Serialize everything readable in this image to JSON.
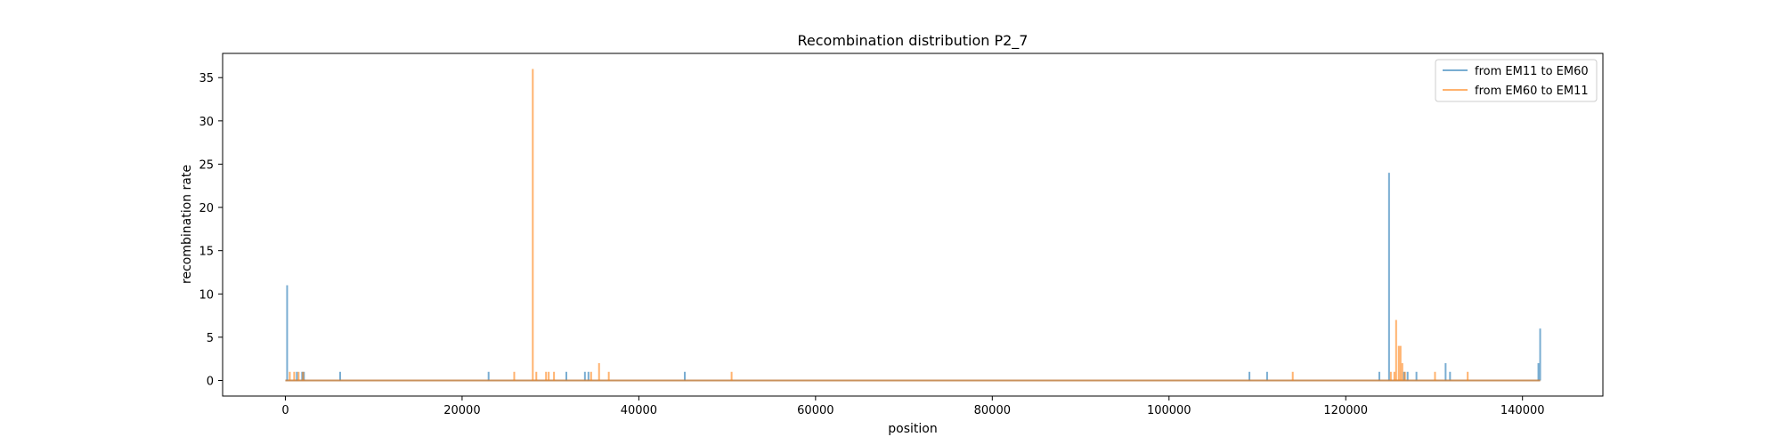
{
  "chart_data": {
    "type": "line",
    "title": "Recombination distribution P2_7",
    "xlabel": "position",
    "ylabel": "recombination rate",
    "xlim": [
      -7100,
      149100
    ],
    "ylim": [
      -1.8,
      37.8
    ],
    "xticks": [
      0,
      20000,
      40000,
      60000,
      80000,
      100000,
      120000,
      140000
    ],
    "yticks": [
      0,
      5,
      10,
      15,
      20,
      25,
      30,
      35
    ],
    "x_range": [
      0,
      142000
    ],
    "grid": false,
    "legend_position": "top-right",
    "series": [
      {
        "name": "from EM11 to EM60",
        "color": "#1f77b4",
        "spikes": [
          {
            "x": 200,
            "y": 11
          },
          {
            "x": 1300,
            "y": 1
          },
          {
            "x": 1900,
            "y": 1
          },
          {
            "x": 2100,
            "y": 1
          },
          {
            "x": 6200,
            "y": 1
          },
          {
            "x": 23000,
            "y": 1
          },
          {
            "x": 31800,
            "y": 1
          },
          {
            "x": 33900,
            "y": 1
          },
          {
            "x": 34300,
            "y": 1
          },
          {
            "x": 45200,
            "y": 1
          },
          {
            "x": 109100,
            "y": 1
          },
          {
            "x": 111100,
            "y": 1
          },
          {
            "x": 123800,
            "y": 1
          },
          {
            "x": 124900,
            "y": 24
          },
          {
            "x": 126600,
            "y": 1
          },
          {
            "x": 127000,
            "y": 1
          },
          {
            "x": 128000,
            "y": 1
          },
          {
            "x": 131300,
            "y": 2
          },
          {
            "x": 131800,
            "y": 1
          },
          {
            "x": 141800,
            "y": 2
          },
          {
            "x": 142000,
            "y": 6
          }
        ]
      },
      {
        "name": "from EM60 to EM11",
        "color": "#ff7f0e",
        "spikes": [
          {
            "x": 500,
            "y": 1
          },
          {
            "x": 1000,
            "y": 1
          },
          {
            "x": 1500,
            "y": 1
          },
          {
            "x": 2000,
            "y": 1
          },
          {
            "x": 25900,
            "y": 1
          },
          {
            "x": 28000,
            "y": 36
          },
          {
            "x": 28400,
            "y": 1
          },
          {
            "x": 29500,
            "y": 1
          },
          {
            "x": 29800,
            "y": 1
          },
          {
            "x": 30400,
            "y": 1
          },
          {
            "x": 34600,
            "y": 1
          },
          {
            "x": 35500,
            "y": 2
          },
          {
            "x": 36600,
            "y": 1
          },
          {
            "x": 50500,
            "y": 1
          },
          {
            "x": 114000,
            "y": 1
          },
          {
            "x": 125100,
            "y": 1
          },
          {
            "x": 125500,
            "y": 1
          },
          {
            "x": 125700,
            "y": 7
          },
          {
            "x": 126000,
            "y": 4
          },
          {
            "x": 126200,
            "y": 4
          },
          {
            "x": 126400,
            "y": 2
          },
          {
            "x": 126700,
            "y": 1
          },
          {
            "x": 130100,
            "y": 1
          },
          {
            "x": 133800,
            "y": 1
          }
        ]
      }
    ]
  }
}
